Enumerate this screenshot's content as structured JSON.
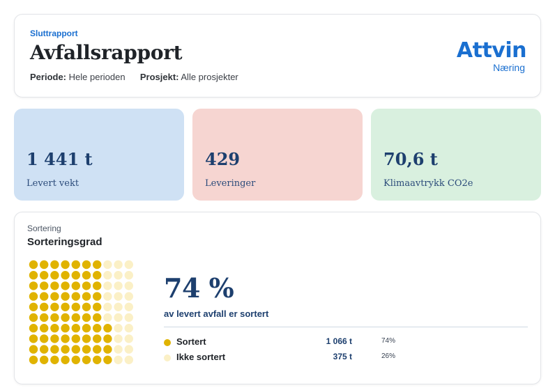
{
  "header": {
    "eyebrow": "Sluttrapport",
    "title": "Avfallsrapport",
    "period_label": "Periode:",
    "period_value": "Hele perioden",
    "project_label": "Prosjekt:",
    "project_value": "Alle prosjekter",
    "logo_main": "Attvin",
    "logo_sub": "Næring"
  },
  "kpis": [
    {
      "value": "1 441 t",
      "label": "Levert vekt"
    },
    {
      "value": "429",
      "label": "Leveringer"
    },
    {
      "value": "70,6 t",
      "label": "Klimaavtrykk CO2e"
    }
  ],
  "sorting": {
    "eyebrow": "Sortering",
    "title": "Sorteringsgrad",
    "percent": "74 %",
    "subtitle": "av levert avfall er sortert",
    "rows": [
      {
        "name": "Sortert",
        "amount": "1 066 t",
        "share": "74%",
        "color": "#e0b300"
      },
      {
        "name": "Ikke sortert",
        "amount": "375 t",
        "share": "26%",
        "color": "#fbf0c6"
      }
    ],
    "waffle": {
      "filled": 74,
      "total": 100,
      "filled_color": "#e0b300",
      "empty_color": "#fbf0c6"
    }
  }
}
